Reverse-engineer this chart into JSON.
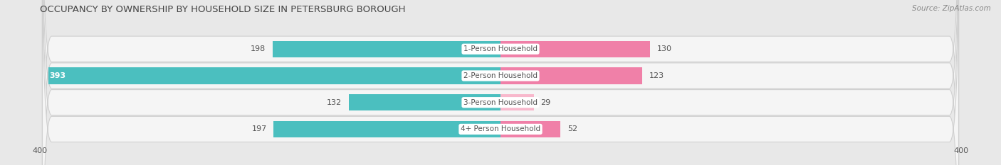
{
  "title": "OCCUPANCY BY OWNERSHIP BY HOUSEHOLD SIZE IN PETERSBURG BOROUGH",
  "source": "Source: ZipAtlas.com",
  "categories": [
    "1-Person Household",
    "2-Person Household",
    "3-Person Household",
    "4+ Person Household"
  ],
  "owner_values": [
    198,
    393,
    132,
    197
  ],
  "renter_values": [
    130,
    123,
    29,
    52
  ],
  "owner_color": "#4bbfbf",
  "renter_color": "#f080a8",
  "renter_color_light": "#f8b8cc",
  "background_color": "#e8e8e8",
  "row_bg_color": "#f5f5f5",
  "row_border_color": "#d0d0d0",
  "axis_limit": 400,
  "title_fontsize": 9.5,
  "source_fontsize": 7.5,
  "cat_label_fontsize": 7.5,
  "bar_label_fontsize": 8,
  "axis_label_fontsize": 8,
  "bar_height": 0.62,
  "value_label_color": "#555555",
  "white_label_color": "#ffffff",
  "cat_label_color": "#555555"
}
